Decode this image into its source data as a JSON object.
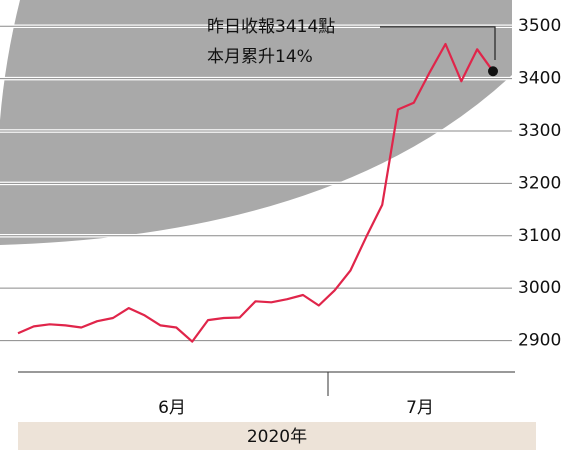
{
  "chart_data": {
    "type": "line",
    "values": [
      2914,
      2927,
      2931,
      2929,
      2925,
      2937,
      2943,
      2962,
      2948,
      2929,
      2925,
      2898,
      2939,
      2943,
      2944,
      2975,
      2973,
      2979,
      2987,
      2967,
      2996,
      3034,
      3098,
      3159,
      3341,
      3354,
      3412,
      3466,
      3395,
      3456,
      3414
    ],
    "color": "#e0254a",
    "ylim": [
      2840,
      3550
    ],
    "yticks": [
      2900,
      3000,
      3100,
      3200,
      3300,
      3400,
      3500
    ],
    "grid": true,
    "annotation": [
      "昨日收報3414點",
      "本月累升14%"
    ],
    "month_labels": [
      "6月",
      "7月"
    ],
    "year_label": "2020年"
  }
}
